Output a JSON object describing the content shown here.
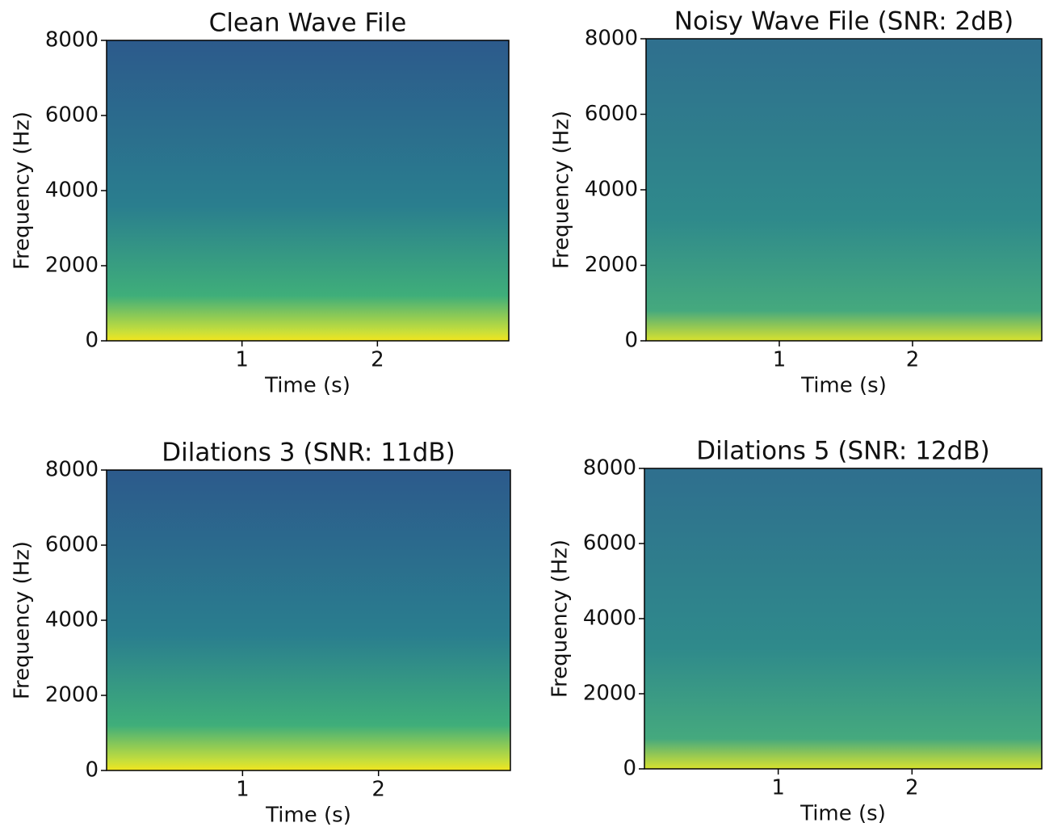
{
  "chart_data": [
    {
      "type": "spectrogram",
      "title": "Clean Wave File",
      "x_label": "Time (s)",
      "y_label": "Frequency (Hz)",
      "colormap": "viridis",
      "xlim": [
        0,
        2.97
      ],
      "ylim": [
        0,
        8000
      ],
      "xticks": [
        1,
        2
      ],
      "yticks": [
        0,
        2000,
        4000,
        6000,
        8000
      ]
    },
    {
      "type": "spectrogram",
      "title": "Noisy Wave File (SNR: 2dB)",
      "x_label": "Time (s)",
      "y_label": "Frequency (Hz)",
      "colormap": "viridis",
      "xlim": [
        0,
        2.97
      ],
      "ylim": [
        0,
        8000
      ],
      "xticks": [
        1,
        2
      ],
      "yticks": [
        0,
        2000,
        4000,
        6000,
        8000
      ]
    },
    {
      "type": "spectrogram",
      "title": "Dilations 3 (SNR: 11dB)",
      "x_label": "Time (s)",
      "y_label": "Frequency (Hz)",
      "colormap": "viridis",
      "xlim": [
        0,
        2.97
      ],
      "ylim": [
        0,
        8000
      ],
      "xticks": [
        1,
        2
      ],
      "yticks": [
        0,
        2000,
        4000,
        6000,
        8000
      ]
    },
    {
      "type": "spectrogram",
      "title": "Dilations 5 (SNR: 12dB)",
      "x_label": "Time (s)",
      "y_label": "Frequency (Hz)",
      "colormap": "viridis",
      "xlim": [
        0,
        2.97
      ],
      "ylim": [
        0,
        8000
      ],
      "xticks": [
        1,
        2
      ],
      "yticks": [
        0,
        2000,
        4000,
        6000,
        8000
      ]
    }
  ]
}
